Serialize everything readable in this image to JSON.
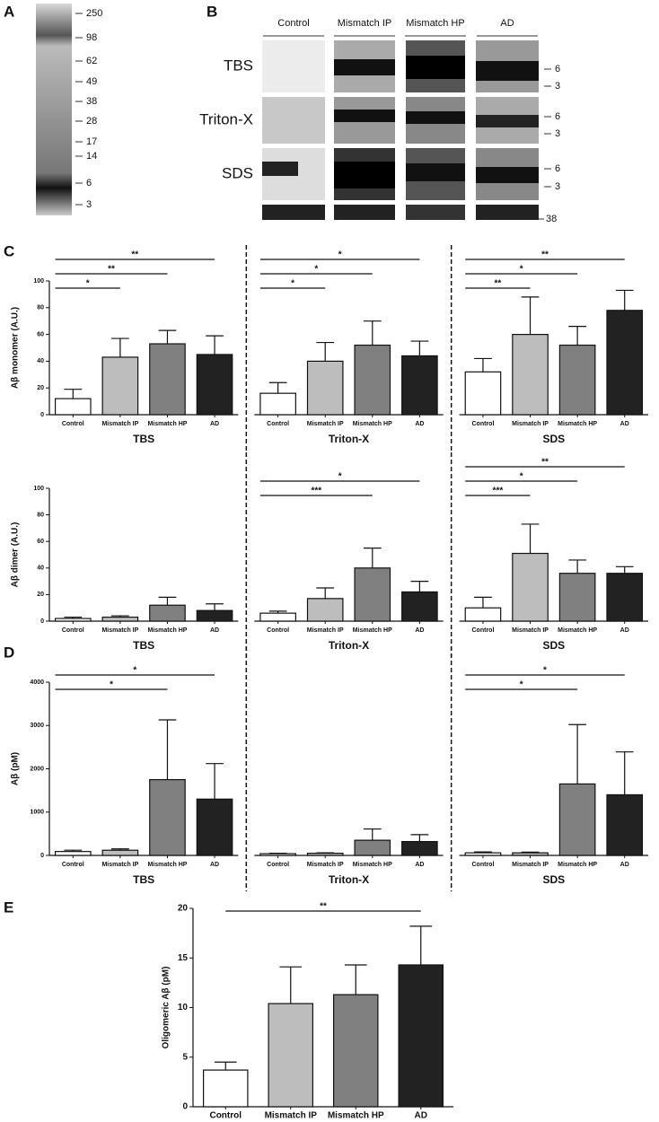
{
  "blot_a": {
    "label": "A",
    "markers": [
      "250",
      "98",
      "62",
      "49",
      "38",
      "28",
      "17",
      "14",
      "6",
      "3"
    ]
  },
  "blot_b": {
    "label": "B",
    "columns": [
      "Control",
      "Mismatch IP",
      "Mismatch HP",
      "AD"
    ],
    "rows": [
      {
        "name": "TBS",
        "markers": [
          "6",
          "3"
        ]
      },
      {
        "name": "Triton-X",
        "markers": [
          "6",
          "3"
        ]
      },
      {
        "name": "SDS",
        "markers": [
          "6",
          "3"
        ]
      }
    ],
    "loading_marker": "38"
  },
  "chart_data": [
    {
      "type": "grouped_bar",
      "panel": "C",
      "ylabel": "Aβ monomer (A.U.)",
      "categories": [
        "Control",
        "Mismatch IP",
        "Mismatch HP",
        "AD"
      ],
      "colors": [
        "#ffffff",
        "#bdbdbd",
        "#808080",
        "#222222"
      ],
      "ylim": [
        0,
        100
      ],
      "yticks": [
        0,
        20,
        40,
        60,
        80,
        100
      ],
      "groups": [
        {
          "name": "TBS",
          "values": [
            12,
            43,
            53,
            45
          ],
          "errors": [
            7,
            14,
            10,
            14
          ],
          "significance": [
            {
              "from": 0,
              "to": 1,
              "label": "*"
            },
            {
              "from": 0,
              "to": 2,
              "label": "**"
            },
            {
              "from": 0,
              "to": 3,
              "label": "**"
            }
          ]
        },
        {
          "name": "Triton-X",
          "values": [
            16,
            40,
            52,
            44
          ],
          "errors": [
            8,
            14,
            18,
            11
          ],
          "significance": [
            {
              "from": 0,
              "to": 1,
              "label": "*"
            },
            {
              "from": 0,
              "to": 2,
              "label": "*"
            },
            {
              "from": 0,
              "to": 3,
              "label": "*"
            }
          ]
        },
        {
          "name": "SDS",
          "values": [
            32,
            60,
            52,
            78
          ],
          "errors": [
            10,
            28,
            14,
            15
          ],
          "significance": [
            {
              "from": 0,
              "to": 1,
              "label": "**"
            },
            {
              "from": 0,
              "to": 2,
              "label": "*"
            },
            {
              "from": 0,
              "to": 3,
              "label": "**"
            }
          ]
        }
      ]
    },
    {
      "type": "grouped_bar",
      "ylabel": "Aβ dimer (A.U.)",
      "categories": [
        "Control",
        "Mismatch IP",
        "Mismatch HP",
        "AD"
      ],
      "colors": [
        "#ffffff",
        "#bdbdbd",
        "#808080",
        "#222222"
      ],
      "ylim": [
        0,
        100
      ],
      "yticks": [
        0,
        20,
        40,
        60,
        80,
        100
      ],
      "groups": [
        {
          "name": "TBS",
          "values": [
            2,
            3,
            12,
            8
          ],
          "errors": [
            1,
            1,
            6,
            5
          ],
          "significance": []
        },
        {
          "name": "Triton-X",
          "values": [
            6,
            17,
            40,
            22
          ],
          "errors": [
            1.5,
            8,
            15,
            8
          ],
          "significance": [
            {
              "from": 0,
              "to": 2,
              "label": "***"
            },
            {
              "from": 0,
              "to": 3,
              "label": "*"
            }
          ]
        },
        {
          "name": "SDS",
          "values": [
            10,
            51,
            36,
            36
          ],
          "errors": [
            8,
            22,
            10,
            5
          ],
          "significance": [
            {
              "from": 0,
              "to": 1,
              "label": "***"
            },
            {
              "from": 0,
              "to": 2,
              "label": "*"
            },
            {
              "from": 0,
              "to": 3,
              "label": "**"
            }
          ]
        }
      ]
    },
    {
      "type": "grouped_bar",
      "panel": "D",
      "ylabel": "Aβ (pM)",
      "categories": [
        "Control",
        "Mismatch IP",
        "Mismatch HP",
        "AD"
      ],
      "colors": [
        "#ffffff",
        "#bdbdbd",
        "#808080",
        "#222222"
      ],
      "ylim": [
        0,
        4000
      ],
      "yticks": [
        0,
        1000,
        2000,
        3000,
        4000
      ],
      "groups": [
        {
          "name": "TBS",
          "values": [
            90,
            120,
            1750,
            1300
          ],
          "errors": [
            30,
            30,
            1380,
            820
          ],
          "significance": [
            {
              "from": 0,
              "to": 2,
              "label": "*"
            },
            {
              "from": 0,
              "to": 3,
              "label": "*"
            }
          ]
        },
        {
          "name": "Triton-X",
          "values": [
            40,
            50,
            350,
            320
          ],
          "errors": [
            10,
            10,
            260,
            160
          ],
          "significance": []
        },
        {
          "name": "SDS",
          "values": [
            60,
            60,
            1650,
            1400
          ],
          "errors": [
            20,
            15,
            1370,
            990
          ],
          "significance": [
            {
              "from": 0,
              "to": 2,
              "label": "*"
            },
            {
              "from": 0,
              "to": 3,
              "label": "*"
            }
          ]
        }
      ]
    },
    {
      "type": "bar",
      "panel": "E",
      "ylabel": "Oligomeric Aβ (pM)",
      "categories": [
        "Control",
        "Mismatch IP",
        "Mismatch HP",
        "AD"
      ],
      "colors": [
        "#ffffff",
        "#bdbdbd",
        "#808080",
        "#222222"
      ],
      "ylim": [
        0,
        20
      ],
      "yticks": [
        0,
        5,
        10,
        15,
        20
      ],
      "values": [
        3.7,
        10.4,
        11.3,
        14.3
      ],
      "errors": [
        0.8,
        3.7,
        3.0,
        3.9
      ],
      "significance": [
        {
          "from": 0,
          "to": 3,
          "label": "**"
        }
      ]
    }
  ]
}
